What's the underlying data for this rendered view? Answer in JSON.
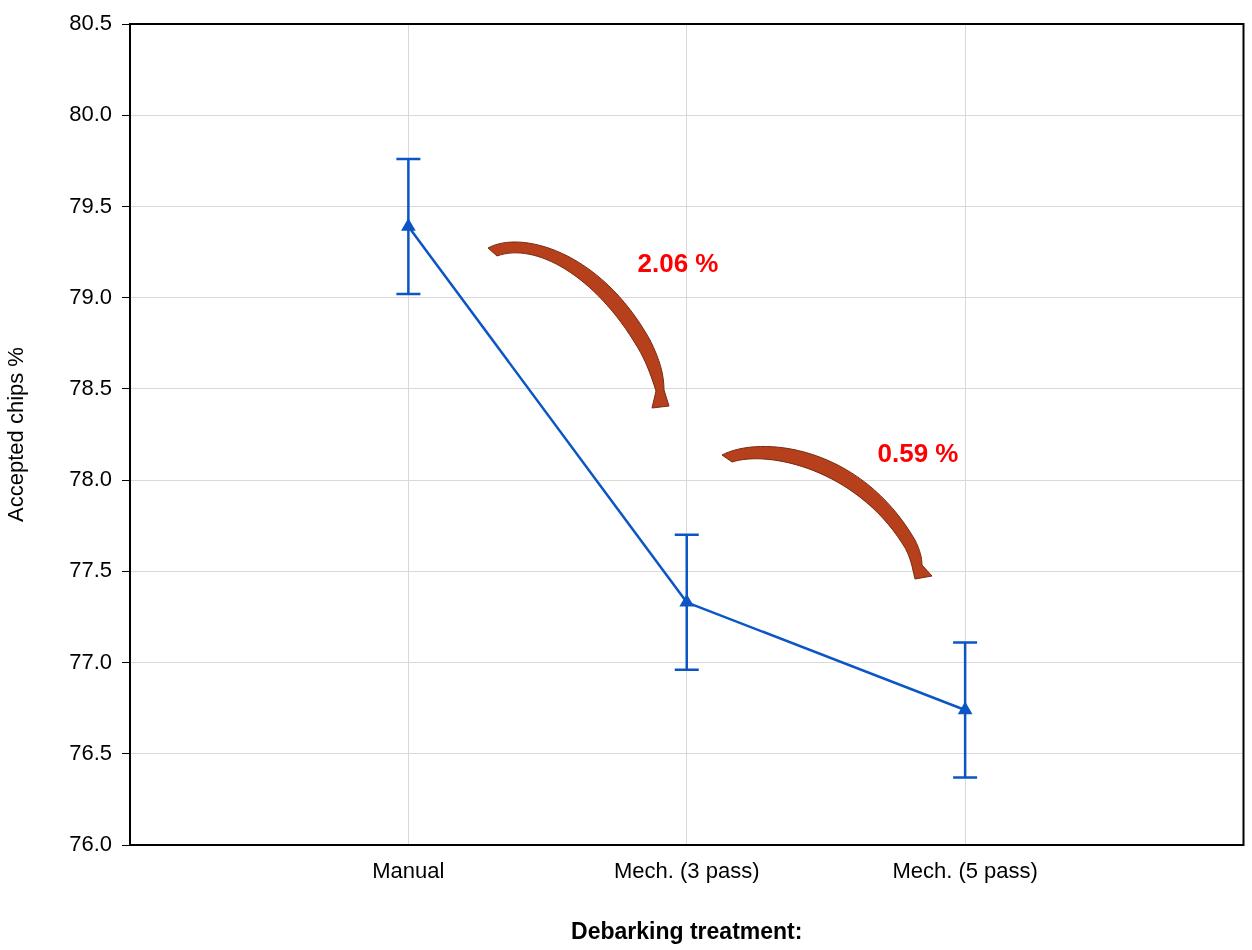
{
  "chart_data": {
    "type": "line",
    "xlabel": "Debarking treatment:",
    "ylabel": "Accepted chips %",
    "categories": [
      "Manual",
      "Mech. (3 pass)",
      "Mech. (5 pass)"
    ],
    "series": [
      {
        "color": "#0b55c4",
        "values": [
          79.39,
          77.33,
          76.74
        ],
        "errors": [
          0.37,
          0.37,
          0.37
        ]
      }
    ],
    "ylim": [
      76.0,
      80.5
    ],
    "yticks": [
      {
        "value": 76,
        "label": "76.0"
      },
      76.5,
      {
        "value": 77,
        "label": "77.0"
      },
      77.5,
      {
        "value": 78,
        "label": "78.0"
      },
      78.5,
      {
        "value": 79,
        "label": "79.0"
      },
      79.5,
      {
        "value": 80,
        "label": "80.0"
      },
      80.5
    ],
    "grid": true,
    "marker": "triangle",
    "line_style": "solid",
    "annotations": [
      "2.06 %",
      "0.59 %"
    ]
  }
}
